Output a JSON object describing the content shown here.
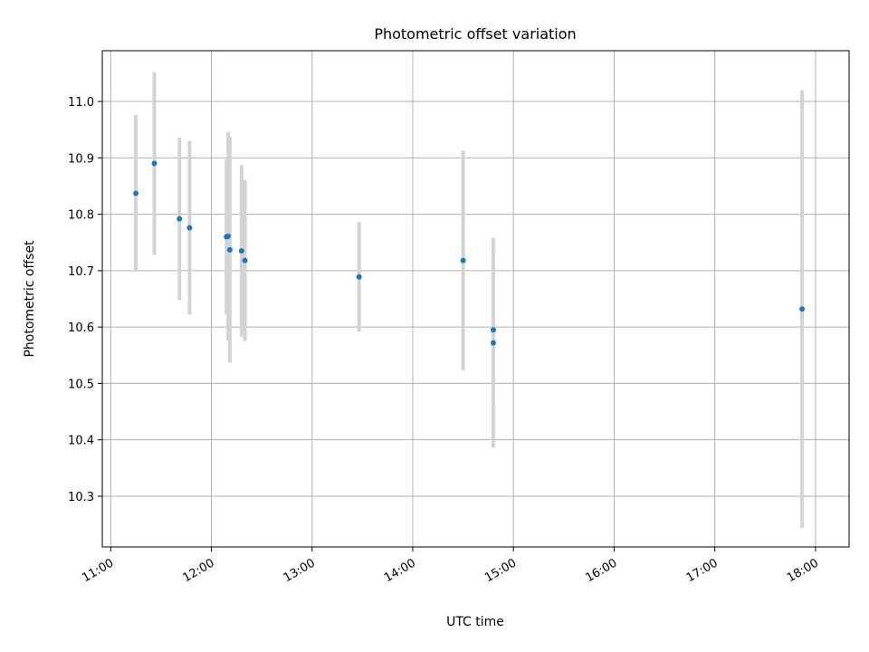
{
  "chart_data": {
    "type": "scatter",
    "title": "Photometric offset variation",
    "xlabel": "UTC time",
    "ylabel": "Photometric offset",
    "x_axis_type": "time",
    "xlim": [
      "10:55",
      "18:20"
    ],
    "ylim": [
      10.21,
      11.09
    ],
    "xticks": [
      "11:00",
      "12:00",
      "13:00",
      "14:00",
      "15:00",
      "16:00",
      "17:00",
      "18:00"
    ],
    "yticks": [
      "10.3",
      "10.4",
      "10.5",
      "10.6",
      "10.7",
      "10.8",
      "10.9",
      "11.0"
    ],
    "grid": true,
    "legend": "none",
    "point_color": "#1f77b4",
    "errorbar_color": "#d3d3d3",
    "points": [
      {
        "t": "11:15",
        "y": 10.837,
        "err": 0.139
      },
      {
        "t": "11:26",
        "y": 10.89,
        "err": 0.162
      },
      {
        "t": "11:41",
        "y": 10.792,
        "err": 0.144
      },
      {
        "t": "11:47",
        "y": 10.776,
        "err": 0.154
      },
      {
        "t": "12:09",
        "y": 10.76,
        "err": 0.137
      },
      {
        "t": "12:10",
        "y": 10.761,
        "err": 0.185
      },
      {
        "t": "12:11",
        "y": 10.737,
        "err": 0.2
      },
      {
        "t": "12:18",
        "y": 10.735,
        "err": 0.152
      },
      {
        "t": "12:20",
        "y": 10.718,
        "err": 0.143
      },
      {
        "t": "13:28",
        "y": 10.689,
        "err": 0.097
      },
      {
        "t": "14:30",
        "y": 10.718,
        "err": 0.195
      },
      {
        "t": "14:48",
        "y": 10.595,
        "err": 0.136
      },
      {
        "t": "14:48",
        "y": 10.572,
        "err": 0.186
      },
      {
        "t": "17:52",
        "y": 10.632,
        "err": 0.388
      }
    ]
  }
}
